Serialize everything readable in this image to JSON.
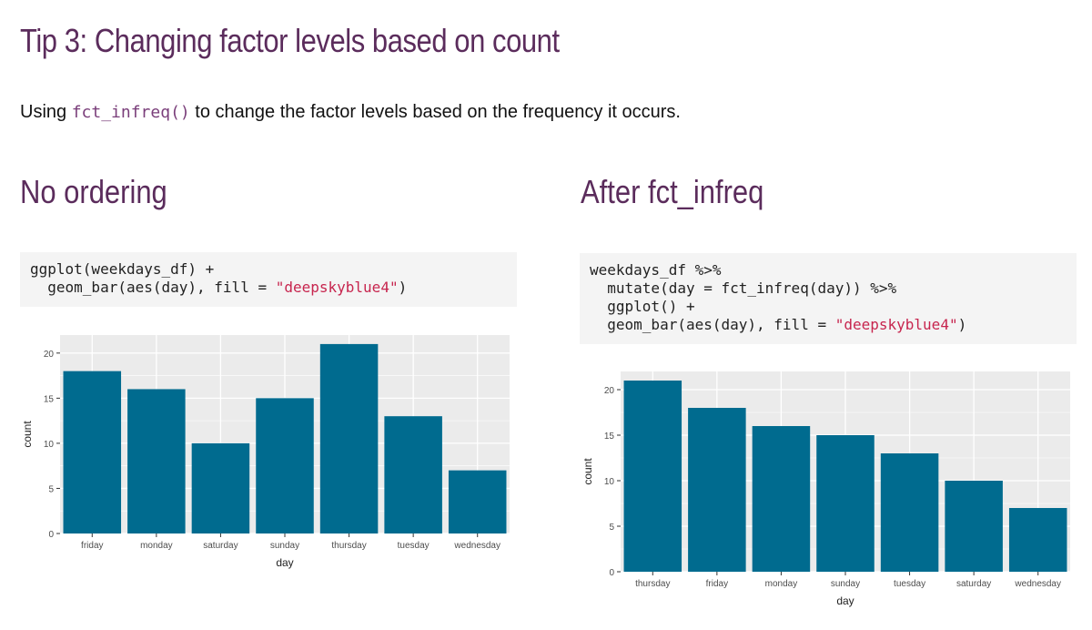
{
  "page": {
    "title": "Tip 3: Changing factor levels based on count",
    "intro_before": "Using ",
    "intro_code": "fct_infreq()",
    "intro_after": " to change the factor levels based on the frequency it occurs."
  },
  "left": {
    "heading": "No ordering",
    "code_lines": [
      {
        "pre": "ggplot(weekdays_df) +",
        "str": "",
        "post": ""
      },
      {
        "pre": "  geom_bar(aes(day), fill = ",
        "str": "\"deepskyblue4\"",
        "post": ")"
      }
    ]
  },
  "right": {
    "heading": "After fct_infreq",
    "code_lines": [
      {
        "pre": "weekdays_df %>%",
        "str": "",
        "post": ""
      },
      {
        "pre": "  mutate(day = fct_infreq(day)) %>%",
        "str": "",
        "post": ""
      },
      {
        "pre": "  ggplot() +",
        "str": "",
        "post": ""
      },
      {
        "pre": "  geom_bar(aes(day), fill = ",
        "str": "\"deepskyblue4\"",
        "post": ")"
      }
    ]
  },
  "colors": {
    "bar_fill": "#006b8f",
    "panel_bg": "#ebebeb",
    "grid": "#ffffff",
    "heading": "#5b2c5c"
  },
  "chart_data": [
    {
      "type": "bar",
      "categories": [
        "friday",
        "monday",
        "saturday",
        "sunday",
        "thursday",
        "tuesday",
        "wednesday"
      ],
      "values": [
        18,
        16,
        10,
        15,
        21,
        13,
        7
      ],
      "title": "",
      "xlabel": "day",
      "ylabel": "count",
      "ylim": [
        0,
        22
      ],
      "yticks": [
        0,
        5,
        10,
        15,
        20
      ],
      "grid": true
    },
    {
      "type": "bar",
      "categories": [
        "thursday",
        "friday",
        "monday",
        "sunday",
        "tuesday",
        "saturday",
        "wednesday"
      ],
      "values": [
        21,
        18,
        16,
        15,
        13,
        10,
        7
      ],
      "title": "",
      "xlabel": "day",
      "ylabel": "count",
      "ylim": [
        0,
        22
      ],
      "yticks": [
        0,
        5,
        10,
        15,
        20
      ],
      "grid": true
    }
  ]
}
